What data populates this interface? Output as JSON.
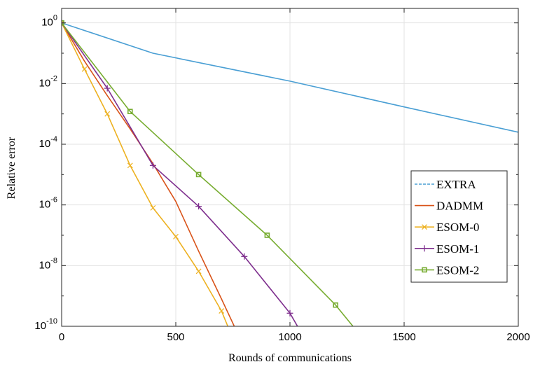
{
  "chart_data": {
    "type": "line",
    "title": "",
    "xlabel": "Rounds of communications",
    "ylabel": "Relative error",
    "xlim": [
      0,
      2000
    ],
    "ylim": [
      1e-10,
      3
    ],
    "yscale": "log",
    "x_ticks": [
      0,
      500,
      1000,
      1500,
      2000
    ],
    "x_tick_labels": [
      "0",
      "500",
      "1000",
      "1500",
      "2000"
    ],
    "y_ticks": [
      1e-10,
      1e-08,
      1e-06,
      0.0001,
      0.01,
      1
    ],
    "y_tick_labels": [
      {
        "base": "10",
        "exp": "-10"
      },
      {
        "base": "10",
        "exp": "-8"
      },
      {
        "base": "10",
        "exp": "-6"
      },
      {
        "base": "10",
        "exp": "-4"
      },
      {
        "base": "10",
        "exp": "-2"
      },
      {
        "base": "10",
        "exp": "0"
      }
    ],
    "grid": true,
    "legend_position": "right",
    "series": [
      {
        "name": "EXTRA",
        "color": "#4a9fd4",
        "marker": "none",
        "points": [
          [
            0,
            1
          ],
          [
            400,
            0.1
          ],
          [
            1000,
            0.012
          ],
          [
            1500,
            0.0017
          ],
          [
            2000,
            0.00025
          ]
        ]
      },
      {
        "name": "DADMM",
        "color": "#d95319",
        "marker": "none",
        "points": [
          [
            0,
            1
          ],
          [
            100,
            0.055
          ],
          [
            200,
            0.004
          ],
          [
            300,
            0.00032
          ],
          [
            400,
            2.3e-05
          ],
          [
            500,
            1.3e-06
          ],
          [
            600,
            3e-08
          ],
          [
            700,
            8e-10
          ],
          [
            770,
            6e-11
          ]
        ]
      },
      {
        "name": "ESOM-0",
        "color": "#edb120",
        "marker": "x",
        "points": [
          [
            0,
            1
          ],
          [
            100,
            0.03
          ],
          [
            200,
            0.001
          ],
          [
            300,
            2e-05
          ],
          [
            400,
            8e-07
          ],
          [
            500,
            9e-08
          ],
          [
            600,
            6.5e-09
          ],
          [
            700,
            3.2e-10
          ],
          [
            740,
            6e-11
          ]
        ]
      },
      {
        "name": "ESOM-1",
        "color": "#7e2f8e",
        "marker": "+",
        "points": [
          [
            0,
            1
          ],
          [
            200,
            0.007
          ],
          [
            400,
            2e-05
          ],
          [
            600,
            9e-07
          ],
          [
            800,
            2e-08
          ],
          [
            1000,
            2.7e-10
          ],
          [
            1050,
            6e-11
          ]
        ]
      },
      {
        "name": "ESOM-2",
        "color": "#77ac30",
        "marker": "square",
        "points": [
          [
            0,
            1
          ],
          [
            300,
            0.0012
          ],
          [
            600,
            1e-05
          ],
          [
            900,
            1e-07
          ],
          [
            1200,
            5e-10
          ],
          [
            1300,
            6e-11
          ]
        ]
      }
    ]
  }
}
